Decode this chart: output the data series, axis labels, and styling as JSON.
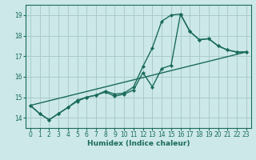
{
  "background_color": "#cce8e8",
  "grid_color": "#aacccc",
  "line_color": "#1a6b5a",
  "xlabel": "Humidex (Indice chaleur)",
  "xlim": [
    -0.5,
    23.5
  ],
  "ylim": [
    13.5,
    19.5
  ],
  "xticks": [
    0,
    1,
    2,
    3,
    4,
    5,
    6,
    7,
    8,
    9,
    10,
    11,
    12,
    13,
    14,
    15,
    16,
    17,
    18,
    19,
    20,
    21,
    22,
    23
  ],
  "yticks": [
    14,
    15,
    16,
    17,
    18,
    19
  ],
  "line1_x": [
    0,
    1,
    2,
    3,
    4,
    5,
    6,
    7,
    8,
    9,
    10,
    11,
    12,
    13,
    14,
    15,
    16,
    17,
    18,
    19,
    20,
    21,
    22,
    23
  ],
  "line1_y": [
    14.6,
    14.2,
    13.9,
    14.2,
    14.5,
    14.85,
    15.0,
    15.1,
    15.3,
    15.15,
    15.2,
    15.5,
    16.5,
    17.4,
    18.7,
    19.0,
    19.05,
    18.2,
    17.8,
    17.85,
    17.5,
    17.3,
    17.2,
    17.2
  ],
  "line2_x": [
    0,
    1,
    2,
    3,
    4,
    5,
    6,
    7,
    8,
    9,
    10,
    11,
    12,
    13,
    14,
    15,
    16,
    17,
    18,
    19,
    20,
    21,
    22,
    23
  ],
  "line2_y": [
    14.6,
    14.2,
    13.9,
    14.2,
    14.5,
    14.8,
    15.0,
    15.1,
    15.25,
    15.05,
    15.15,
    15.35,
    16.2,
    15.5,
    16.4,
    16.55,
    19.05,
    18.2,
    17.8,
    17.85,
    17.5,
    17.3,
    17.2,
    17.2
  ],
  "line3_x": [
    0,
    23
  ],
  "line3_y": [
    14.6,
    17.2
  ],
  "linewidth": 1.0,
  "marker_size": 2.2
}
